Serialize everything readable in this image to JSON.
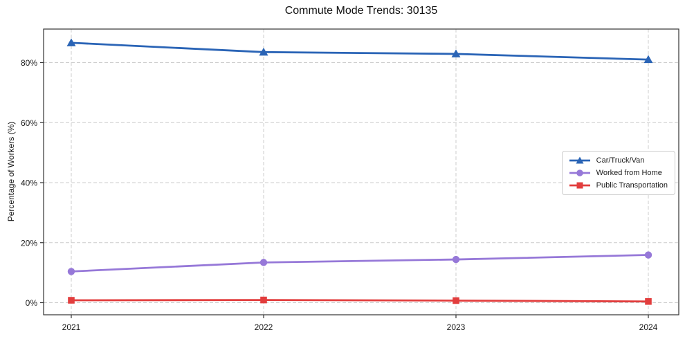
{
  "header": {
    "title": "Commute Mode Trends: 30135"
  },
  "chart_data": {
    "type": "line",
    "title": "Commute Mode Trends: 30135",
    "xlabel": "",
    "ylabel": "Percentage of Workers (%)",
    "categories": [
      "2021",
      "2022",
      "2023",
      "2024"
    ],
    "series": [
      {
        "name": "Car/Truck/Van",
        "marker": "triangle",
        "color": "#2a64b6",
        "values": [
          86.6,
          83.5,
          82.9,
          81.0
        ]
      },
      {
        "name": "Worked from Home",
        "marker": "circle",
        "color": "#9678d8",
        "values": [
          10.4,
          13.4,
          14.4,
          15.9
        ]
      },
      {
        "name": "Public Transportation",
        "marker": "square",
        "color": "#e23d3d",
        "values": [
          0.8,
          0.9,
          0.7,
          0.4
        ]
      }
    ],
    "y_ticks": [
      "0%",
      "20%",
      "40%",
      "60%",
      "80%"
    ],
    "y_tick_values": [
      0,
      20,
      40,
      60,
      80
    ],
    "ylim": [
      -4,
      91
    ],
    "grid": true,
    "grid_style": "dashed",
    "grid_color": "#cccccc",
    "legend_position": "center-right"
  }
}
